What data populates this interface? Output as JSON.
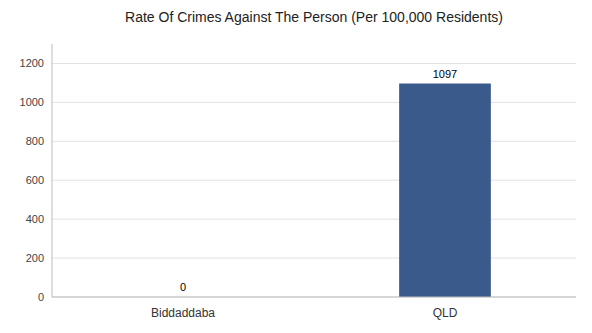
{
  "chart_data": {
    "type": "bar",
    "title": "Rate Of Crimes Against The Person (Per 100,000 Residents)",
    "categories": [
      "Biddaddaba",
      "QLD"
    ],
    "values": [
      0,
      1097
    ],
    "color": "#3a5a8c",
    "ylim": [
      0,
      1300
    ],
    "yticks": [
      0,
      200,
      400,
      600,
      800,
      1000,
      1200
    ],
    "grid": true,
    "data_labels": true
  }
}
